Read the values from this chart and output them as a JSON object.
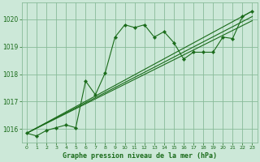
{
  "bg_color": "#cce8d8",
  "grid_color": "#88bb99",
  "line_color": "#1a6b1a",
  "xlabel": "Graphe pression niveau de la mer (hPa)",
  "xlim": [
    -0.5,
    23.5
  ],
  "ylim": [
    1015.5,
    1020.6
  ],
  "yticks": [
    1016,
    1017,
    1018,
    1019,
    1020
  ],
  "xticks": [
    0,
    1,
    2,
    3,
    4,
    5,
    6,
    7,
    8,
    9,
    10,
    11,
    12,
    13,
    14,
    15,
    16,
    17,
    18,
    19,
    20,
    21,
    22,
    23
  ],
  "main_x": [
    0,
    1,
    2,
    3,
    4,
    5,
    6,
    7,
    8,
    9,
    10,
    11,
    12,
    13,
    14,
    15,
    16,
    17,
    18,
    19,
    20,
    21,
    22,
    23
  ],
  "main_y": [
    1015.85,
    1015.75,
    1015.95,
    1016.05,
    1016.15,
    1016.05,
    1017.75,
    1017.25,
    1018.05,
    1019.35,
    1019.8,
    1019.7,
    1019.8,
    1019.35,
    1019.55,
    1019.15,
    1018.55,
    1018.8,
    1018.8,
    1018.8,
    1019.35,
    1019.3,
    1020.1,
    1020.3
  ],
  "line2_x": [
    0,
    23
  ],
  "line2_y": [
    1015.85,
    1020.3
  ],
  "line3_x": [
    0,
    23
  ],
  "line3_y": [
    1015.85,
    1020.1
  ],
  "line4_x": [
    0,
    23
  ],
  "line4_y": [
    1015.85,
    1019.95
  ]
}
